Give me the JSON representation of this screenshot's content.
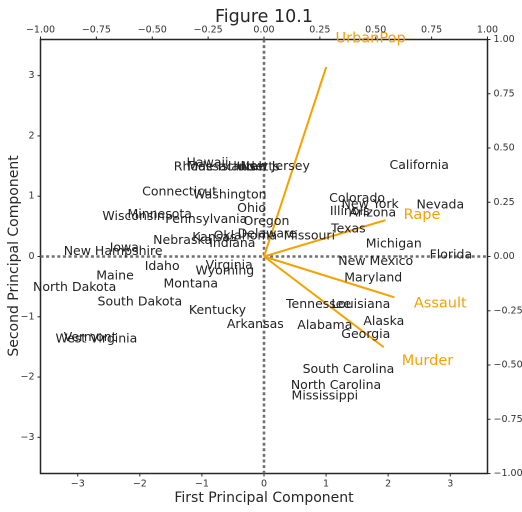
{
  "chart_data": {
    "type": "scatter",
    "title": "Figure 10.1",
    "xlabel": "First Principal Component",
    "ylabel": "Second Principal Component",
    "xlim": [
      -3.6,
      3.6
    ],
    "ylim": [
      -3.6,
      3.6
    ],
    "xticks": [
      "−3",
      "−2",
      "−1",
      "0",
      "1",
      "2",
      "3"
    ],
    "yticks": [
      "−3",
      "−2",
      "−1",
      "0",
      "1",
      "2",
      "3"
    ],
    "secondary_xlim": [
      -1.0,
      1.0
    ],
    "secondary_ylim": [
      -1.0,
      1.0
    ],
    "secondary_xticks": [
      "−1.00",
      "−0.75",
      "−0.50",
      "−0.25",
      "0.00",
      "0.25",
      "0.50",
      "0.75",
      "1.00"
    ],
    "secondary_yticks": [
      "−1.00",
      "−0.75",
      "−0.50",
      "−0.25",
      "0.00",
      "0.25",
      "0.50",
      "0.75",
      "1.00"
    ],
    "reference_lines": [
      "x=0",
      "y=0"
    ],
    "grid": false,
    "colors": {
      "states": "#222222",
      "loadings": "#f5a100",
      "reference_lines": "#707070",
      "frame": "#262626"
    },
    "states": [
      {
        "label": "Alabama",
        "x": 0.98,
        "y": -1.13
      },
      {
        "label": "Alaska",
        "x": 1.93,
        "y": -1.06
      },
      {
        "label": "Arizona",
        "x": 1.75,
        "y": 0.74
      },
      {
        "label": "Arkansas",
        "x": -0.14,
        "y": -1.11
      },
      {
        "label": "California",
        "x": 2.5,
        "y": 1.53
      },
      {
        "label": "Colorado",
        "x": 1.5,
        "y": 0.98
      },
      {
        "label": "Connecticut",
        "x": -1.36,
        "y": 1.09
      },
      {
        "label": "Delaware",
        "x": 0.05,
        "y": 0.39
      },
      {
        "label": "Florida",
        "x": 3.01,
        "y": 0.04
      },
      {
        "label": "Georgia",
        "x": 1.64,
        "y": -1.28
      },
      {
        "label": "Hawaii",
        "x": -0.91,
        "y": 1.57
      },
      {
        "label": "Idaho",
        "x": -1.64,
        "y": -0.15
      },
      {
        "label": "Illinois",
        "x": 1.38,
        "y": 0.76
      },
      {
        "label": "Indiana",
        "x": -0.51,
        "y": 0.23
      },
      {
        "label": "Iowa",
        "x": -2.25,
        "y": 0.16
      },
      {
        "label": "Kansas",
        "x": -0.8,
        "y": 0.33
      },
      {
        "label": "Kentucky",
        "x": -0.75,
        "y": -0.88
      },
      {
        "label": "Louisiana",
        "x": 1.56,
        "y": -0.78
      },
      {
        "label": "Maine",
        "x": -2.4,
        "y": -0.31
      },
      {
        "label": "Maryland",
        "x": 1.76,
        "y": -0.34
      },
      {
        "label": "Massachusetts",
        "x": -0.49,
        "y": 1.5
      },
      {
        "label": "Michigan",
        "x": 2.09,
        "y": 0.22
      },
      {
        "label": "Minnesota",
        "x": -1.68,
        "y": 0.71
      },
      {
        "label": "Mississippi",
        "x": 0.98,
        "y": -2.3
      },
      {
        "label": "Missouri",
        "x": 0.73,
        "y": 0.36
      },
      {
        "label": "Montana",
        "x": -1.18,
        "y": -0.44
      },
      {
        "label": "Nebraska",
        "x": -1.31,
        "y": 0.28
      },
      {
        "label": "Nevada",
        "x": 2.84,
        "y": 0.87
      },
      {
        "label": "New Hampshire",
        "x": -2.43,
        "y": 0.1
      },
      {
        "label": "New Jersey",
        "x": 0.18,
        "y": 1.51
      },
      {
        "label": "New Mexico",
        "x": 1.8,
        "y": -0.07
      },
      {
        "label": "New York",
        "x": 1.71,
        "y": 0.88
      },
      {
        "label": "North Carolina",
        "x": 1.16,
        "y": -2.12
      },
      {
        "label": "North Dakota",
        "x": -3.05,
        "y": -0.5
      },
      {
        "label": "Ohio",
        "x": -0.2,
        "y": 0.81
      },
      {
        "label": "Oklahoma",
        "x": -0.3,
        "y": 0.36
      },
      {
        "label": "Oregon",
        "x": 0.04,
        "y": 0.6
      },
      {
        "label": "Pennsylvania",
        "x": -0.93,
        "y": 0.63
      },
      {
        "label": "Rhode Island",
        "x": -0.8,
        "y": 1.5
      },
      {
        "label": "South Carolina",
        "x": 1.36,
        "y": -1.86
      },
      {
        "label": "South Dakota",
        "x": -2.0,
        "y": -0.74
      },
      {
        "label": "Tennessee",
        "x": 0.88,
        "y": -0.78
      },
      {
        "label": "Texas",
        "x": 1.36,
        "y": 0.47
      },
      {
        "label": "Utah",
        "x": -0.2,
        "y": 1.5
      },
      {
        "label": "Vermont",
        "x": -2.8,
        "y": -1.33
      },
      {
        "label": "Virginia",
        "x": -0.56,
        "y": -0.13
      },
      {
        "label": "Washington",
        "x": -0.55,
        "y": 1.04
      },
      {
        "label": "West Virginia",
        "x": -2.7,
        "y": -1.35
      },
      {
        "label": "Wisconsin",
        "x": -2.1,
        "y": 0.68
      },
      {
        "label": "Wyoming",
        "x": -0.63,
        "y": -0.22
      }
    ],
    "loadings": [
      {
        "label": "Murder",
        "x": 0.5359,
        "y": -0.4182
      },
      {
        "label": "Assault",
        "x": 0.5832,
        "y": -0.188
      },
      {
        "label": "UrbanPop",
        "x": 0.2782,
        "y": 0.8728
      },
      {
        "label": "Rape",
        "x": 0.5434,
        "y": 0.1673
      }
    ]
  }
}
